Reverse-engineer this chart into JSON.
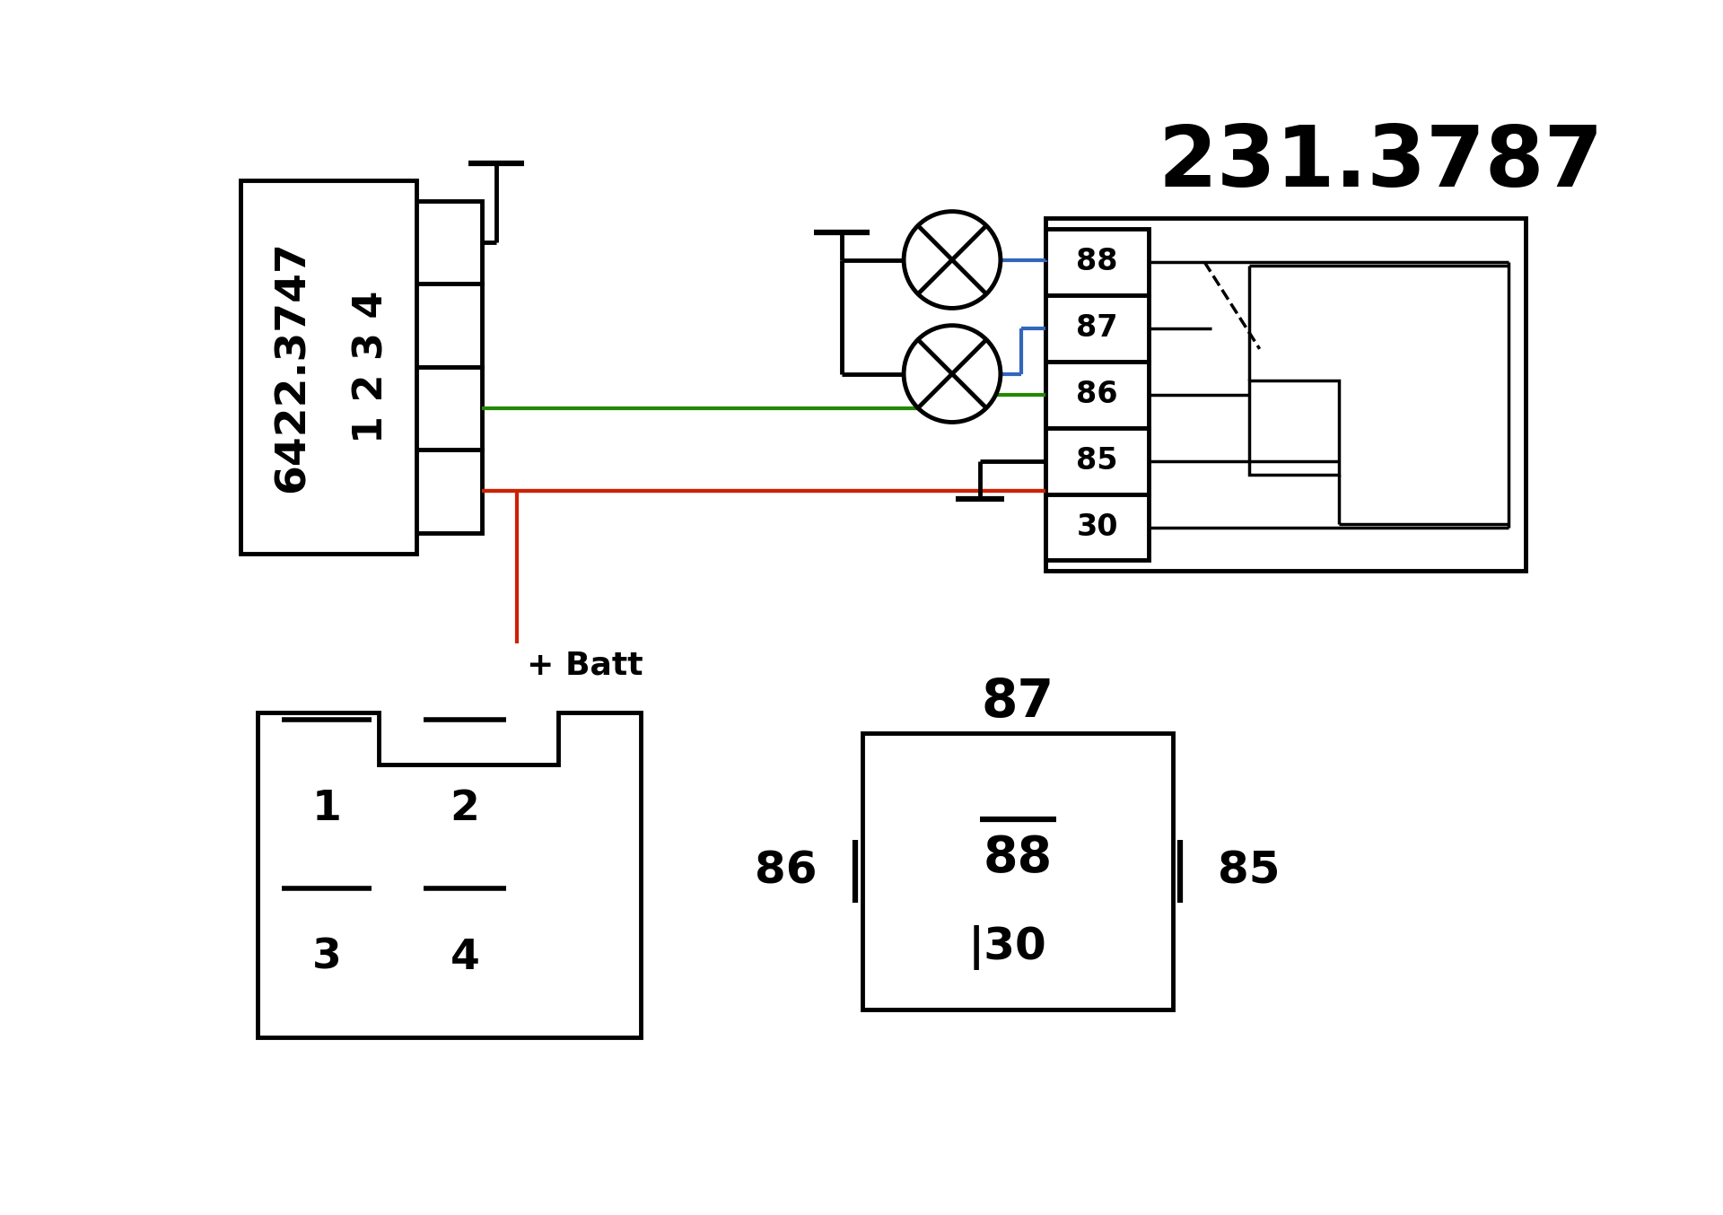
{
  "bg_color": "#ffffff",
  "line_color": "#000000",
  "red_color": "#cc2200",
  "green_color": "#228800",
  "blue_color": "#3366bb",
  "title": "231.3787",
  "batt_label": "+ Batt",
  "connector_label": "6422.3747",
  "term_labels": [
    "88",
    "87",
    "86",
    "85",
    "30"
  ],
  "pin_labels": [
    "4",
    "3",
    "2",
    "1"
  ],
  "lw_main": 3.5,
  "lw_wire": 3.0,
  "lw_inner": 2.5
}
